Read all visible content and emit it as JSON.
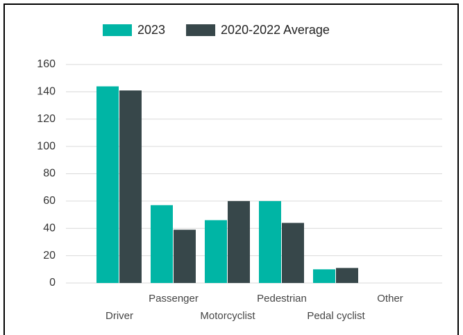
{
  "chart_data": {
    "type": "bar",
    "categories": [
      "Driver",
      "Passenger",
      "Motorcyclist",
      "Pedestrian",
      "Pedal cyclist",
      "Other"
    ],
    "series": [
      {
        "name": "2023",
        "color": "#00b5a5",
        "values": [
          144,
          57,
          46,
          60,
          10,
          0
        ]
      },
      {
        "name": "2020-2022 Average",
        "color": "#37474a",
        "values": [
          141,
          39,
          60,
          44,
          11,
          0
        ]
      }
    ],
    "ylim": [
      0,
      160
    ],
    "yticks": [
      0,
      20,
      40,
      60,
      80,
      100,
      120,
      140,
      160
    ],
    "grid": true,
    "legend": "top"
  }
}
